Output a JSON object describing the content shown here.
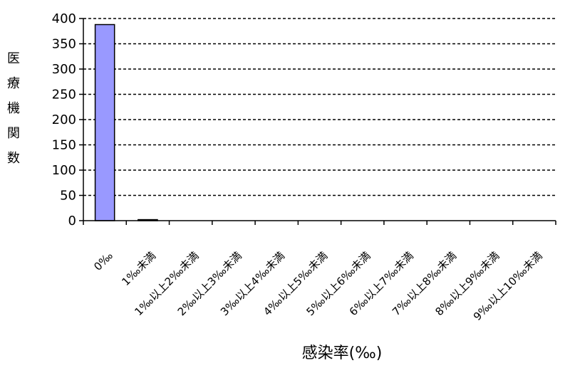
{
  "chart_data": {
    "type": "bar",
    "title": "",
    "xlabel": "感染率(‰)",
    "ylabel": "医療機関数",
    "ylim": [
      0,
      400
    ],
    "yticks": [
      0,
      50,
      100,
      150,
      200,
      250,
      300,
      350,
      400
    ],
    "grid": "horizontal dashed",
    "categories": [
      "0‰",
      "1‰未満",
      "1‰以上2‰未満",
      "2‰以上3‰未満",
      "3‰以上4‰未満",
      "4‰以上5‰未満",
      "5‰以上6‰未満",
      "6‰以上7‰未満",
      "7‰以上8‰未満",
      "8‰以上9‰未満",
      "9‰以上10‰未満"
    ],
    "values": [
      388,
      2,
      0,
      0,
      0,
      0,
      0,
      0,
      0,
      0,
      0
    ],
    "colors": {
      "bar_fill": "#9999ff",
      "bar_stroke": "#000000",
      "grid": "#000000",
      "axis": "#000000"
    }
  }
}
